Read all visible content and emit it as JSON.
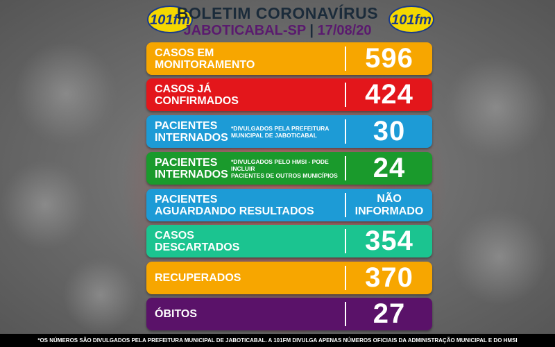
{
  "header": {
    "title": "BOLETIM CORONAVÍRUS",
    "subtitle_city": "JABOTICABAL-SP",
    "subtitle_sep": "|",
    "subtitle_date": "17/08/20",
    "logo_text": "101fm"
  },
  "rows": [
    {
      "label_1": "CASOS EM",
      "label_2": "MONITORAMENTO",
      "note_1": "",
      "note_2": "",
      "value": "596",
      "color": "#f7a600"
    },
    {
      "label_1": "CASOS JÁ",
      "label_2": "CONFIRMADOS",
      "note_1": "",
      "note_2": "",
      "value": "424",
      "color": "#e3161b"
    },
    {
      "label_1": "PACIENTES",
      "label_2": "INTERNADOS",
      "note_1": "*DIVULGADOS PELA PREFEITURA",
      "note_2": "MUNICIPAL DE JABOTICABAL",
      "value": "30",
      "color": "#1d9bd6"
    },
    {
      "label_1": "PACIENTES",
      "label_2": "INTERNADOS",
      "note_1": "*DIVULGADOS PELO HMSI - PODE INCLUIR",
      "note_2": "PACIENTES DE OUTROS MUNICÍPIOS",
      "value": "24",
      "color": "#1a9a2c"
    },
    {
      "label_1": "PACIENTES",
      "label_2": "AGUARDANDO RESULTADOS",
      "note_1": "",
      "note_2": "",
      "value_1": "NÃO",
      "value_2": "INFORMADO",
      "color": "#1d9bd6"
    },
    {
      "label_1": "CASOS",
      "label_2": "DESCARTADOS",
      "note_1": "",
      "note_2": "",
      "value": "354",
      "color": "#1bc490"
    },
    {
      "label_1": "RECUPERADOS",
      "label_2": "",
      "note_1": "",
      "note_2": "",
      "value": "370",
      "color": "#f7a600"
    },
    {
      "label_1": "ÓBITOS",
      "label_2": "",
      "note_1": "",
      "note_2": "",
      "value": "27",
      "color": "#5a1269"
    }
  ],
  "footer": {
    "text": "*OS NÚMEROS SÃO DIVULGADOS PELA PREFEITURA MUNICIPAL DE JABOTICABAL. A 101FM DIVULGA APENAS NÚMEROS OFICIAIS DA ADMINISTRAÇÃO MUNICIPAL E DO HMSI"
  }
}
